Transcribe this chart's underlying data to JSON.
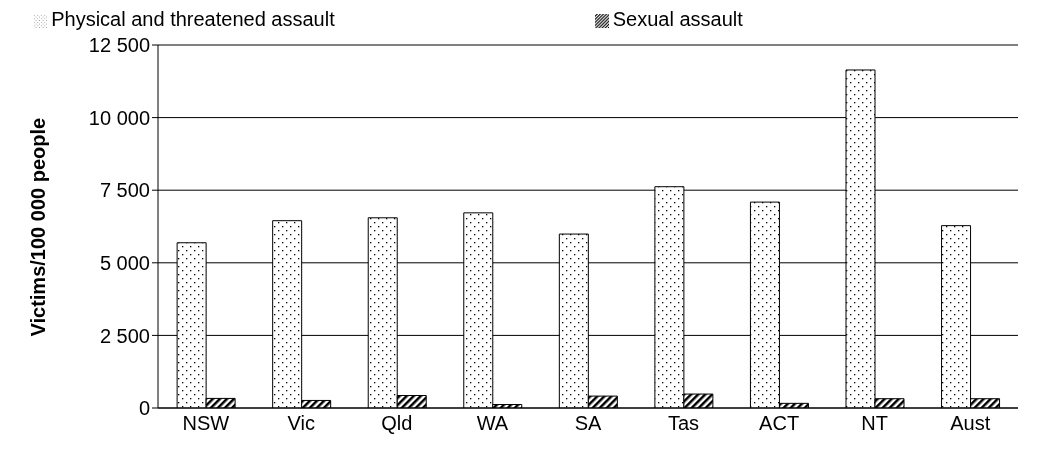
{
  "chart_data": {
    "type": "bar",
    "ylabel": "Victims/100 000 people",
    "categories": [
      "NSW",
      "Vic",
      "Qld",
      "WA",
      "SA",
      "Tas",
      "ACT",
      "NT",
      "Aust"
    ],
    "series": [
      {
        "name": "Physical and threatened assault",
        "color": "#000000",
        "values": [
          5690,
          6450,
          6550,
          6720,
          5990,
          7620,
          7090,
          11640,
          6280
        ]
      },
      {
        "name": "Sexual assault",
        "color": "#000000",
        "values": [
          330,
          260,
          430,
          120,
          410,
          480,
          160,
          320,
          320
        ]
      }
    ],
    "ylim": [
      0,
      12500
    ],
    "yticks": [
      0,
      {
        "value": 2500,
        "label": "2 500"
      },
      {
        "value": 5000,
        "label": "5 000"
      },
      {
        "value": 7500,
        "label": "7 500"
      },
      {
        "value": 10000,
        "label": "10 000"
      },
      {
        "value": 12500,
        "label": "12 500"
      }
    ],
    "grid": "y",
    "legend": "top"
  }
}
